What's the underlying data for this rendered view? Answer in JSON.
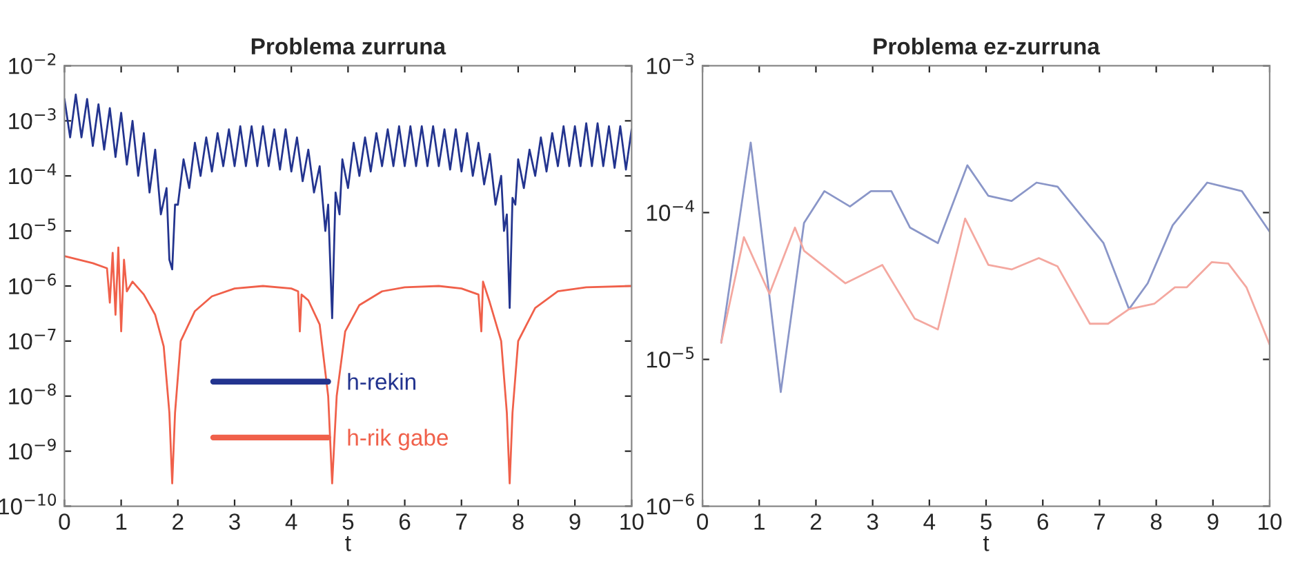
{
  "chart_data": [
    {
      "type": "line",
      "title": "Problema zurruna",
      "xlabel": "t",
      "log": "y",
      "xlim": [
        0,
        10
      ],
      "xticks": [
        0,
        1,
        2,
        3,
        4,
        5,
        6,
        7,
        8,
        9,
        10
      ],
      "ylim": [
        1e-10,
        0.01
      ],
      "yticks": [
        {
          "value": 1e-10,
          "label": "10$^{−10}$"
        },
        {
          "value": 1e-09,
          "label": "10$^{−9}$"
        },
        {
          "value": 1e-08,
          "label": "10$^{−8}$"
        },
        {
          "value": 1e-07,
          "label": "10$^{−7}$"
        },
        {
          "value": 1e-06,
          "label": "10$^{−6}$"
        },
        {
          "value": 1e-05,
          "label": "10$^{−5}$"
        },
        {
          "value": 0.0001,
          "label": "10$^{−4}$"
        },
        {
          "value": 0.001,
          "label": "10$^{−3}$"
        },
        {
          "value": 0.01,
          "label": "10$^{−2}$"
        }
      ],
      "legend": "bottom",
      "grid": false,
      "series": [
        {
          "name": "h-rekin",
          "color": "#23348f",
          "x": [
            0,
            0.1,
            0.2,
            0.3,
            0.4,
            0.5,
            0.6,
            0.7,
            0.8,
            0.9,
            1.0,
            1.1,
            1.2,
            1.3,
            1.4,
            1.5,
            1.6,
            1.7,
            1.8,
            1.85,
            1.9,
            1.95,
            2.0,
            2.1,
            2.2,
            2.3,
            2.4,
            2.5,
            2.6,
            2.7,
            2.8,
            2.9,
            3.0,
            3.1,
            3.2,
            3.3,
            3.4,
            3.5,
            3.6,
            3.7,
            3.8,
            3.9,
            4.0,
            4.1,
            4.2,
            4.3,
            4.4,
            4.5,
            4.6,
            4.65,
            4.72,
            4.78,
            4.85,
            4.9,
            5.0,
            5.1,
            5.2,
            5.3,
            5.4,
            5.5,
            5.6,
            5.7,
            5.8,
            5.9,
            6.0,
            6.1,
            6.2,
            6.3,
            6.4,
            6.5,
            6.6,
            6.7,
            6.8,
            6.9,
            7.0,
            7.1,
            7.2,
            7.3,
            7.4,
            7.5,
            7.6,
            7.7,
            7.75,
            7.8,
            7.85,
            7.9,
            7.95,
            8.0,
            8.1,
            8.2,
            8.3,
            8.4,
            8.5,
            8.6,
            8.7,
            8.8,
            8.9,
            9.0,
            9.1,
            9.2,
            9.3,
            9.4,
            9.5,
            9.6,
            9.7,
            9.8,
            9.9,
            10
          ],
          "values": [
            0.0025,
            0.0005,
            0.003,
            0.0005,
            0.0025,
            0.00035,
            0.002,
            0.0003,
            0.0017,
            0.00022,
            0.0014,
            0.00016,
            0.001,
            0.0001,
            0.0006,
            5e-05,
            0.0003,
            2e-05,
            6e-05,
            3e-06,
            2e-06,
            3e-05,
            3e-05,
            0.0002,
            6e-05,
            0.0004,
            0.0001,
            0.0005,
            0.00012,
            0.0006,
            0.00015,
            0.0007,
            0.00015,
            0.0008,
            0.00015,
            0.0008,
            0.00015,
            0.0008,
            0.00015,
            0.0007,
            0.00013,
            0.0007,
            0.00012,
            0.0005,
            8e-05,
            0.0003,
            5e-05,
            0.00015,
            1e-05,
            3e-05,
            2.6e-07,
            5e-05,
            2e-05,
            0.0002,
            6e-05,
            0.0004,
            0.0001,
            0.0005,
            0.00012,
            0.0006,
            0.00015,
            0.0007,
            0.00015,
            0.0008,
            0.00015,
            0.0008,
            0.00015,
            0.0008,
            0.00015,
            0.0008,
            0.00015,
            0.0007,
            0.00013,
            0.0007,
            0.00012,
            0.0006,
            0.0001,
            0.0004,
            7e-05,
            0.00025,
            3e-05,
            0.0001,
            1e-05,
            2e-05,
            4e-07,
            4e-05,
            3e-05,
            0.0002,
            6e-05,
            0.0003,
            0.0001,
            0.0005,
            0.00012,
            0.0006,
            0.00015,
            0.0008,
            0.00015,
            0.0008,
            0.00015,
            0.0009,
            0.00015,
            0.0009,
            0.00015,
            0.0008,
            0.00014,
            0.0008,
            0.00013,
            0.0007
          ]
        },
        {
          "name": "h-rik gabe",
          "color": "#f0604a",
          "x": [
            0,
            0.5,
            0.75,
            0.8,
            0.85,
            0.9,
            0.95,
            1.0,
            1.05,
            1.1,
            1.2,
            1.4,
            1.6,
            1.75,
            1.85,
            1.9,
            1.95,
            2.05,
            2.3,
            2.6,
            3.0,
            3.5,
            4.0,
            4.12,
            4.15,
            4.18,
            4.3,
            4.5,
            4.65,
            4.72,
            4.8,
            4.95,
            5.2,
            5.6,
            6.0,
            6.6,
            7.0,
            7.3,
            7.35,
            7.38,
            7.5,
            7.7,
            7.8,
            7.85,
            7.9,
            8.0,
            8.3,
            8.7,
            9.2,
            10
          ],
          "values": [
            3.5e-06,
            2.6e-06,
            2.1e-06,
            5e-07,
            4e-06,
            3e-07,
            5e-06,
            1.5e-07,
            3e-06,
            8e-07,
            1.2e-06,
            7e-07,
            3e-07,
            8e-08,
            5e-09,
            2.6e-10,
            5e-09,
            1e-07,
            3.5e-07,
            6.5e-07,
            9e-07,
            1e-06,
            9e-07,
            8e-07,
            1.5e-07,
            7e-07,
            5.5e-07,
            2e-07,
            1e-08,
            2.6e-10,
            1e-08,
            1.5e-07,
            4.5e-07,
            8e-07,
            9.5e-07,
            1e-06,
            9e-07,
            7e-07,
            1.5e-07,
            1.2e-06,
            5e-07,
            1e-07,
            5e-09,
            2.6e-10,
            5e-09,
            1e-07,
            4e-07,
            8e-07,
            9.5e-07,
            1e-06
          ]
        }
      ]
    },
    {
      "type": "line",
      "title": "Problema ez-zurruna",
      "xlabel": "t",
      "log": "y",
      "xlim": [
        0,
        10
      ],
      "xticks": [
        0,
        1,
        2,
        3,
        4,
        5,
        6,
        7,
        8,
        9,
        10
      ],
      "ylim": [
        1e-06,
        0.001
      ],
      "yticks": [
        {
          "value": 1e-06,
          "label": "10$^{−6}$"
        },
        {
          "value": 1e-05,
          "label": "10$^{−5}$"
        },
        {
          "value": 0.0001,
          "label": "10$^{−4}$"
        },
        {
          "value": 0.001,
          "label": "10$^{−3}$"
        }
      ],
      "grid": false,
      "series": [
        {
          "color": "#8a96c8",
          "x": [
            0.33,
            0.85,
            1.18,
            1.38,
            1.79,
            2.15,
            2.6,
            2.97,
            3.33,
            3.66,
            4.15,
            4.67,
            5.04,
            5.45,
            5.89,
            6.26,
            7.07,
            7.52,
            7.85,
            8.29,
            8.9,
            9.51,
            10
          ],
          "values": [
            1.3e-05,
            0.0003,
            2.7e-05,
            6e-06,
            8.5e-05,
            0.00014,
            0.00011,
            0.00014,
            0.00014,
            7.9e-05,
            6.2e-05,
            0.00021,
            0.00013,
            0.00012,
            0.00016,
            0.00015,
            6.2e-05,
            2.2e-05,
            3.3e-05,
            8.2e-05,
            0.00016,
            0.00014,
            7.4e-05
          ]
        },
        {
          "color": "#f4a8a0",
          "x": [
            0.33,
            0.73,
            1.18,
            1.63,
            1.79,
            2.52,
            3.17,
            3.74,
            4.15,
            4.63,
            5.04,
            5.45,
            5.93,
            6.26,
            6.83,
            7.15,
            7.52,
            7.97,
            8.33,
            8.54,
            8.98,
            9.27,
            9.59,
            10
          ],
          "values": [
            1.3e-05,
            6.8e-05,
            2.8e-05,
            7.9e-05,
            5.5e-05,
            3.3e-05,
            4.4e-05,
            1.9e-05,
            1.6e-05,
            9.1e-05,
            4.4e-05,
            4.1e-05,
            4.9e-05,
            4.3e-05,
            1.75e-05,
            1.75e-05,
            2.2e-05,
            2.4e-05,
            3.1e-05,
            3.1e-05,
            4.6e-05,
            4.5e-05,
            3.1e-05,
            1.26e-05
          ]
        }
      ]
    }
  ]
}
